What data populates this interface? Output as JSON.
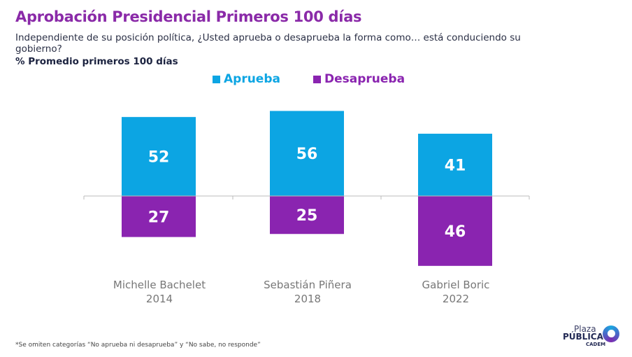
{
  "title": "Aprobación Presidencial Primeros 100 días",
  "subtitle": "Independiente de su posición política, ¿Usted aprueba o desaprueba la forma como… está conduciendo su gobierno?",
  "unit_label": "% Promedio primeros 100 días",
  "footnote": "*Se omiten categorías “No aprueba ni desaprueba” y “No sabe, no responde”",
  "logo": {
    "line1": "Plaza",
    "line2": "PÚBLICA",
    "line3": "CADEM"
  },
  "colors": {
    "aprueba": "#0ca5e3",
    "desaprueba": "#8a24b0",
    "title": "#8a2aa8"
  },
  "chart_data": {
    "type": "bar",
    "stacked": "diverging",
    "categories": [
      {
        "name": "Michelle Bachelet",
        "year": "2014"
      },
      {
        "name": "Sebastián Piñera",
        "year": "2018"
      },
      {
        "name": "Gabriel Boric",
        "year": "2022"
      }
    ],
    "series": [
      {
        "name": "Aprueba",
        "values": [
          52,
          56,
          41
        ]
      },
      {
        "name": "Desaprueba",
        "values": [
          27,
          25,
          46
        ]
      }
    ],
    "legend_position": "top",
    "grid": false
  }
}
